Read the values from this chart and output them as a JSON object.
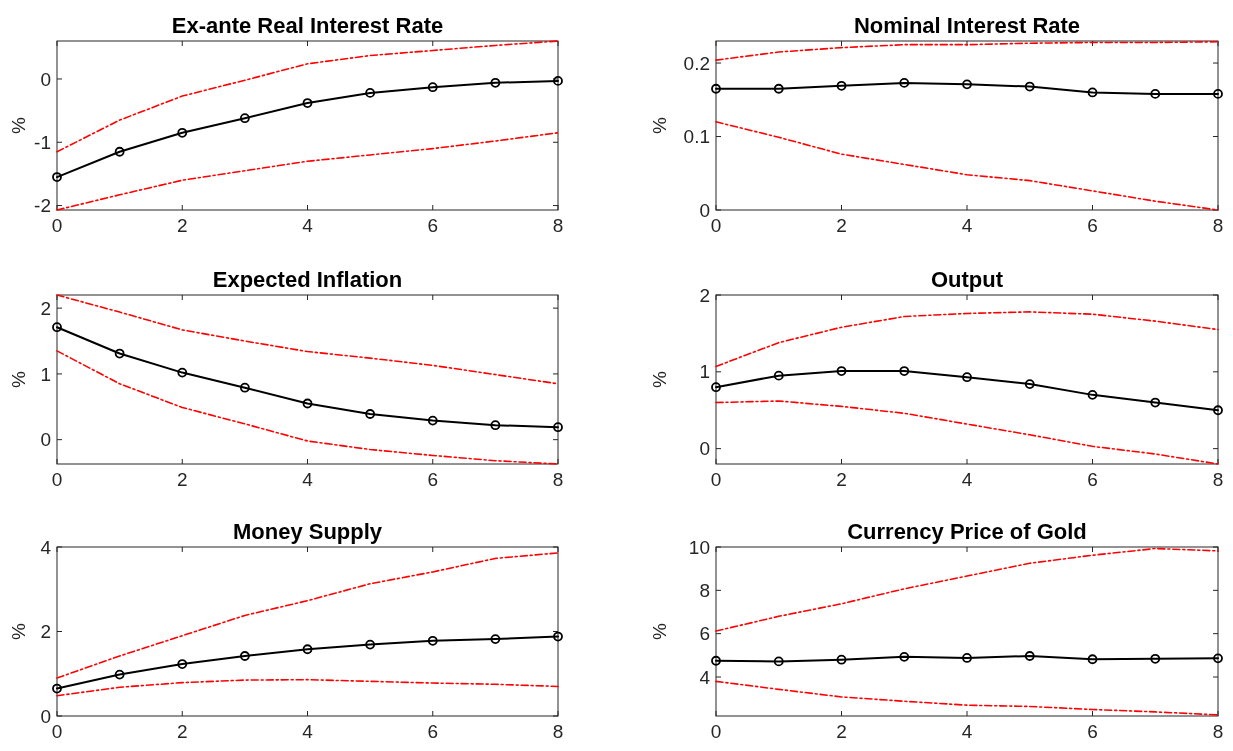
{
  "chart_data": [
    {
      "type": "line",
      "title": "Ex-ante Real Interest Rate",
      "ylabel": "%",
      "x": [
        0,
        1,
        2,
        3,
        4,
        5,
        6,
        7,
        8
      ],
      "xlim": [
        0,
        8
      ],
      "xticks": [
        0,
        2,
        4,
        6,
        8
      ],
      "ylim": [
        -2.07,
        0.6
      ],
      "yticks": [
        -2,
        -1,
        0
      ],
      "series": [
        {
          "color": "#ff0000",
          "marker": "none",
          "line_style": "dashed",
          "values": [
            -1.15,
            -0.65,
            -0.27,
            -0.02,
            0.24,
            0.37,
            0.45,
            0.53,
            0.6
          ]
        },
        {
          "color": "#ff0000",
          "marker": "none",
          "line_style": "dashed",
          "values": [
            -2.07,
            -1.83,
            -1.6,
            -1.45,
            -1.3,
            -1.2,
            -1.1,
            -0.98,
            -0.85
          ]
        },
        {
          "color": "#000000",
          "marker": "circle",
          "line_style": "solid",
          "values": [
            -1.55,
            -1.15,
            -0.85,
            -0.62,
            -0.38,
            -0.22,
            -0.13,
            -0.06,
            -0.03
          ]
        }
      ]
    },
    {
      "type": "line",
      "title": "Nominal Interest Rate",
      "ylabel": "%",
      "x": [
        0,
        1,
        2,
        3,
        4,
        5,
        6,
        7,
        8
      ],
      "xlim": [
        0,
        8
      ],
      "xticks": [
        0,
        2,
        4,
        6,
        8
      ],
      "ylim": [
        0,
        0.23
      ],
      "yticks": [
        0,
        0.1,
        0.2
      ],
      "series": [
        {
          "color": "#ff0000",
          "marker": "none",
          "line_style": "dashed",
          "values": [
            0.204,
            0.215,
            0.221,
            0.225,
            0.225,
            0.227,
            0.228,
            0.228,
            0.229
          ]
        },
        {
          "color": "#ff0000",
          "marker": "none",
          "line_style": "dashed",
          "values": [
            0.12,
            0.099,
            0.076,
            0.062,
            0.048,
            0.04,
            0.026,
            0.012,
            0.0
          ]
        },
        {
          "color": "#000000",
          "marker": "circle",
          "line_style": "solid",
          "values": [
            0.165,
            0.165,
            0.169,
            0.173,
            0.171,
            0.168,
            0.16,
            0.158,
            0.158
          ]
        }
      ]
    },
    {
      "type": "line",
      "title": "Expected Inflation",
      "ylabel": "%",
      "x": [
        0,
        1,
        2,
        3,
        4,
        5,
        6,
        7,
        8
      ],
      "xlim": [
        0,
        8
      ],
      "xticks": [
        0,
        2,
        4,
        6,
        8
      ],
      "ylim": [
        -0.37,
        2.2
      ],
      "yticks": [
        0,
        1,
        2
      ],
      "series": [
        {
          "color": "#ff0000",
          "marker": "none",
          "line_style": "dashed",
          "values": [
            2.2,
            1.94,
            1.67,
            1.5,
            1.34,
            1.24,
            1.13,
            0.99,
            0.85
          ]
        },
        {
          "color": "#ff0000",
          "marker": "none",
          "line_style": "dashed",
          "values": [
            1.35,
            0.85,
            0.49,
            0.24,
            -0.02,
            -0.15,
            -0.24,
            -0.32,
            -0.37
          ]
        },
        {
          "color": "#000000",
          "marker": "circle",
          "line_style": "solid",
          "values": [
            1.71,
            1.31,
            1.02,
            0.79,
            0.55,
            0.39,
            0.29,
            0.22,
            0.19
          ]
        }
      ]
    },
    {
      "type": "line",
      "title": "Output",
      "ylabel": "%",
      "x": [
        0,
        1,
        2,
        3,
        4,
        5,
        6,
        7,
        8
      ],
      "xlim": [
        0,
        8
      ],
      "xticks": [
        0,
        2,
        4,
        6,
        8
      ],
      "ylim": [
        -0.2,
        2
      ],
      "yticks": [
        0,
        1,
        2
      ],
      "series": [
        {
          "color": "#ff0000",
          "marker": "none",
          "line_style": "dashed",
          "values": [
            1.07,
            1.38,
            1.58,
            1.72,
            1.76,
            1.78,
            1.75,
            1.66,
            1.55
          ]
        },
        {
          "color": "#ff0000",
          "marker": "none",
          "line_style": "dashed",
          "values": [
            0.6,
            0.62,
            0.55,
            0.46,
            0.32,
            0.18,
            0.03,
            -0.07,
            -0.2
          ]
        },
        {
          "color": "#000000",
          "marker": "circle",
          "line_style": "solid",
          "values": [
            0.8,
            0.95,
            1.01,
            1.01,
            0.93,
            0.84,
            0.7,
            0.6,
            0.5
          ]
        }
      ]
    },
    {
      "type": "line",
      "title": "Money Supply",
      "ylabel": "%",
      "x": [
        0,
        1,
        2,
        3,
        4,
        5,
        6,
        7,
        8
      ],
      "xlim": [
        0,
        8
      ],
      "xticks": [
        0,
        2,
        4,
        6,
        8
      ],
      "ylim": [
        0,
        4
      ],
      "yticks": [
        0,
        2,
        4
      ],
      "series": [
        {
          "color": "#ff0000",
          "marker": "none",
          "line_style": "dashed",
          "values": [
            0.9,
            1.42,
            1.9,
            2.38,
            2.73,
            3.13,
            3.41,
            3.73,
            3.86
          ]
        },
        {
          "color": "#ff0000",
          "marker": "none",
          "line_style": "dashed",
          "values": [
            0.48,
            0.68,
            0.79,
            0.85,
            0.86,
            0.82,
            0.78,
            0.75,
            0.7
          ]
        },
        {
          "color": "#000000",
          "marker": "circle",
          "line_style": "solid",
          "values": [
            0.65,
            0.98,
            1.23,
            1.42,
            1.58,
            1.69,
            1.78,
            1.82,
            1.88
          ]
        }
      ]
    },
    {
      "type": "line",
      "title": "Currency Price of Gold",
      "ylabel": "%",
      "x": [
        0,
        1,
        2,
        3,
        4,
        5,
        6,
        7,
        8
      ],
      "xlim": [
        0,
        8
      ],
      "xticks": [
        0,
        2,
        4,
        6,
        8
      ],
      "ylim": [
        2.2,
        10
      ],
      "yticks": [
        4,
        6,
        8,
        10
      ],
      "series": [
        {
          "color": "#ff0000",
          "marker": "none",
          "line_style": "dashed",
          "values": [
            6.12,
            6.8,
            7.38,
            8.07,
            8.66,
            9.25,
            9.62,
            9.93,
            9.82
          ]
        },
        {
          "color": "#ff0000",
          "marker": "none",
          "line_style": "dashed",
          "values": [
            3.8,
            3.43,
            3.08,
            2.88,
            2.7,
            2.64,
            2.5,
            2.39,
            2.25
          ]
        },
        {
          "color": "#000000",
          "marker": "circle",
          "line_style": "solid",
          "values": [
            4.75,
            4.72,
            4.8,
            4.93,
            4.88,
            4.97,
            4.82,
            4.84,
            4.86
          ]
        }
      ]
    }
  ]
}
